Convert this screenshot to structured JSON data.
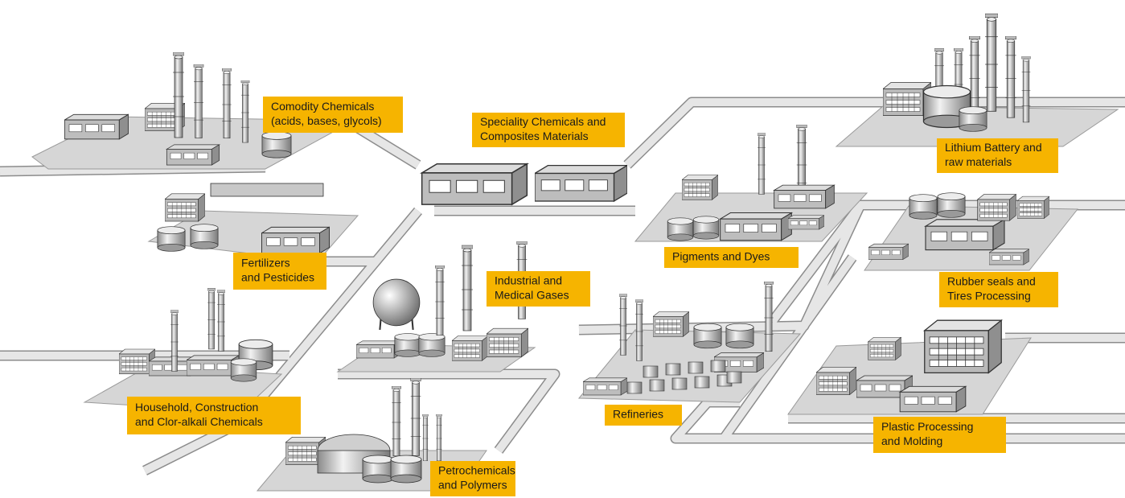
{
  "labels": [
    {
      "lines": [
        "Comodity Chemicals",
        "(acids, bases, glycols)"
      ]
    },
    {
      "lines": [
        "Speciality Chemicals and",
        "Composites Materials"
      ]
    },
    {
      "lines": [
        "Fertilizers",
        "and Pesticides"
      ]
    },
    {
      "lines": [
        "Industrial and",
        "Medical Gases"
      ]
    },
    {
      "lines": [
        "Pigments and Dyes"
      ]
    },
    {
      "lines": [
        "Lithium Battery and",
        "raw materials"
      ]
    },
    {
      "lines": [
        "Rubber seals and",
        "Tires Processing"
      ]
    },
    {
      "lines": [
        "Household, Construction",
        "and Clor-alkali Chemicals"
      ]
    },
    {
      "lines": [
        "Refineries"
      ]
    },
    {
      "lines": [
        "Plastic Processing",
        "and Molding"
      ]
    },
    {
      "lines": [
        "Petrochemicals",
        "and Polymers"
      ]
    }
  ]
}
